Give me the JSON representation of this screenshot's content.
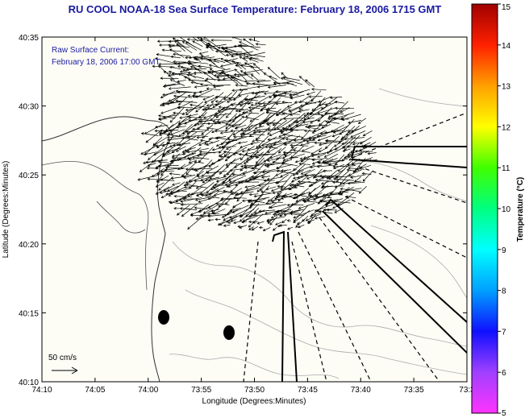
{
  "title": "RU COOL  NOAA-18  Sea Surface Temperature:  February 18, 2006 1715 GMT",
  "annotation": {
    "line1": "Raw Surface Current:",
    "line2": "February 18, 2006 17:00 GMT"
  },
  "scale_label": "50 cm/s",
  "x_axis": {
    "label": "Longitude (Degrees:Minutes)",
    "ticks": [
      "74:10",
      "74:05",
      "74:00",
      "73:55",
      "73:50",
      "73:45",
      "73:40",
      "73:35",
      "73:3"
    ]
  },
  "y_axis": {
    "label": "Latitude (Degrees:Minutes)",
    "ticks": [
      "40:35",
      "40:30",
      "40:25",
      "40:20",
      "40:15",
      "40:10"
    ]
  },
  "colorbar": {
    "label": "Temperature (°C)",
    "ticks": [
      "15",
      "14",
      "13",
      "12",
      "11",
      "10",
      "9",
      "8",
      "7",
      "6",
      "5"
    ],
    "min": 5,
    "max": 15,
    "stops": [
      "#ff33ff",
      "#a040ff",
      "#1010ff",
      "#00a0ff",
      "#00ffff",
      "#00ff80",
      "#40ff00",
      "#ffff00",
      "#ffa000",
      "#ff2000",
      "#a00000"
    ]
  },
  "colors": {
    "land": "#fdfdf6",
    "title": "#1a1aa0",
    "frame": "#000000"
  }
}
